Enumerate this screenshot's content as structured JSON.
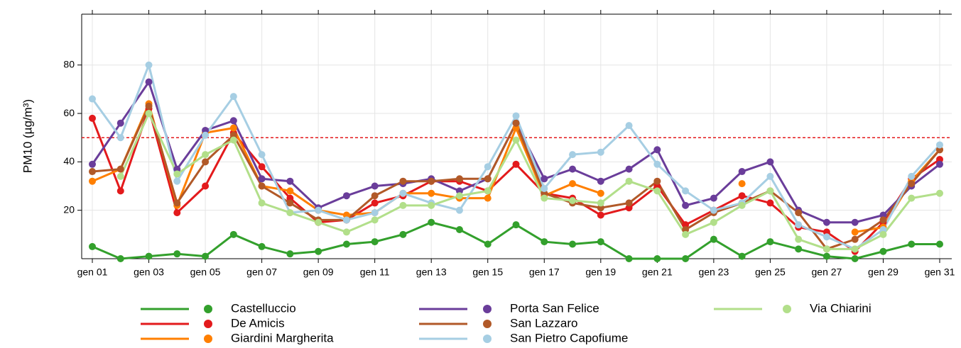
{
  "chart_data": {
    "type": "line",
    "y_label": "PM10 (µg/m³)",
    "categories": [
      "gen 01",
      null,
      "gen 03",
      null,
      "gen 05",
      null,
      "gen 07",
      null,
      "gen 09",
      null,
      "gen 11",
      null,
      "gen 13",
      null,
      "gen 15",
      null,
      "gen 17",
      null,
      "gen 19",
      null,
      "gen 21",
      null,
      "gen 23",
      null,
      "gen 25",
      null,
      "gen 27",
      null,
      "gen 29",
      null,
      "gen 31"
    ],
    "ylim": [
      0,
      101
    ],
    "yticks": [
      20,
      40,
      60,
      80
    ],
    "grid": true,
    "threshold": {
      "value": 50,
      "color": "#e31a1c"
    },
    "series": [
      {
        "name": "Castelluccio",
        "color": "#33a02c",
        "values": [
          5,
          0,
          1,
          2,
          1,
          10,
          5,
          2,
          3,
          6,
          7,
          10,
          15,
          12,
          6,
          14,
          7,
          6,
          7,
          0,
          0,
          0,
          8,
          1,
          7,
          4,
          1,
          0,
          3,
          6,
          6
        ]
      },
      {
        "name": "De Amicis",
        "color": "#e31a1c",
        "values": [
          58,
          28,
          62,
          19,
          30,
          52,
          38,
          25,
          15,
          16,
          23,
          26,
          32,
          32,
          28,
          39,
          27,
          25,
          18,
          21,
          30,
          14,
          20,
          26,
          23,
          13,
          11,
          3,
          15,
          33,
          41
        ]
      },
      {
        "name": "Giardini Margherita",
        "color": "#ff7f00",
        "values": [
          32,
          37,
          64,
          22,
          52,
          54,
          30,
          28,
          20,
          18,
          19,
          27,
          27,
          25,
          25,
          54,
          26,
          31,
          27,
          null,
          null,
          null,
          null,
          31,
          null,
          null,
          null,
          11,
          13,
          32,
          45
        ]
      },
      {
        "name": "Porta San Felice",
        "color": "#6a3d9a",
        "values": [
          39,
          56,
          73,
          37,
          53,
          57,
          33,
          32,
          21,
          26,
          30,
          31,
          33,
          28,
          33,
          56,
          33,
          37,
          32,
          37,
          45,
          22,
          25,
          36,
          40,
          20,
          15,
          15,
          18,
          30,
          39
        ]
      },
      {
        "name": "San Lazzaro",
        "color": "#b15928",
        "values": [
          36,
          37,
          63,
          23,
          40,
          51,
          30,
          23,
          16,
          16,
          26,
          32,
          32,
          33,
          33,
          56,
          27,
          23,
          21,
          23,
          32,
          12,
          19,
          23,
          28,
          19,
          4,
          8,
          16,
          31,
          45
        ]
      },
      {
        "name": "San Pietro Capofiume",
        "color": "#a6cee3",
        "values": [
          66,
          50,
          80,
          32,
          51,
          67,
          43,
          19,
          20,
          16,
          19,
          27,
          23,
          20,
          38,
          59,
          29,
          43,
          44,
          55,
          39,
          28,
          20,
          23,
          34,
          14,
          9,
          4,
          12,
          34,
          47
        ]
      },
      {
        "name": "Via Chiarini",
        "color": "#b2df8a",
        "values": [
          null,
          34,
          60,
          35,
          43,
          49,
          23,
          19,
          15,
          11,
          16,
          22,
          22,
          26,
          28,
          49,
          25,
          24,
          23,
          32,
          28,
          10,
          15,
          22,
          28,
          8,
          4,
          4,
          10,
          25,
          27
        ]
      }
    ]
  }
}
